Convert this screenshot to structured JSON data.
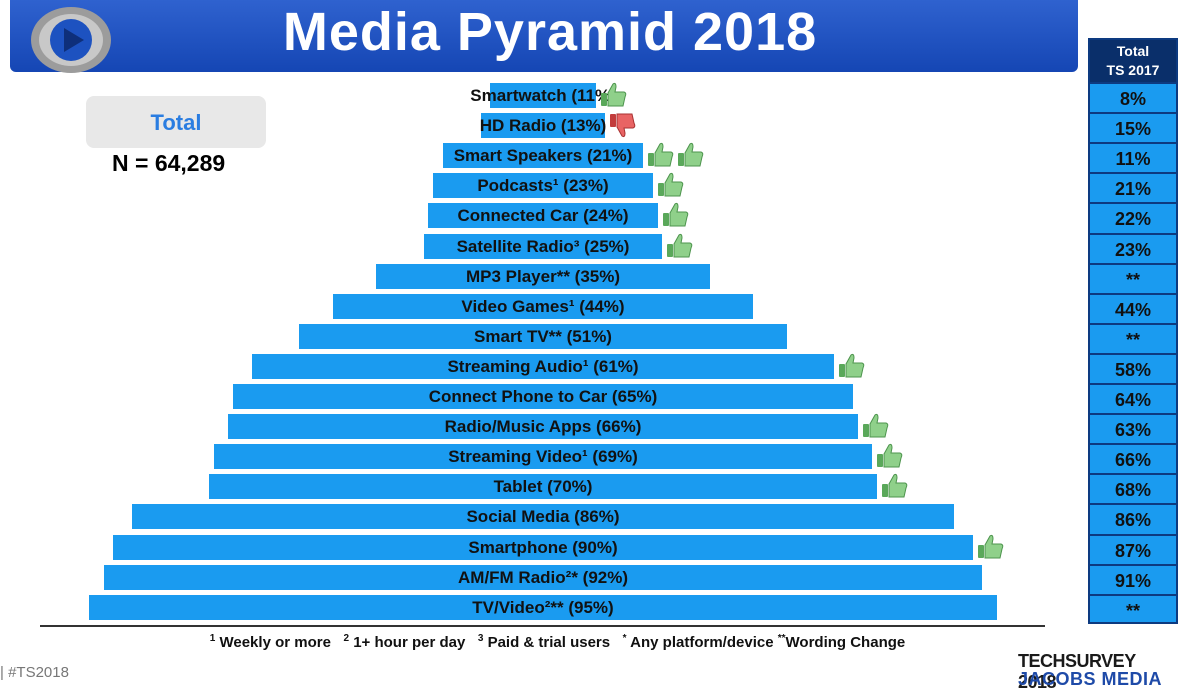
{
  "header": {
    "title": "Media Pyramid 2018"
  },
  "summary": {
    "box_label": "Total",
    "n_label": "N = 64,289"
  },
  "comparison": {
    "header_line1": "Total",
    "header_line2": "TS 2017",
    "values": [
      "8%",
      "15%",
      "11%",
      "21%",
      "22%",
      "23%",
      "**",
      "44%",
      "**",
      "58%",
      "64%",
      "63%",
      "66%",
      "68%",
      "86%",
      "87%",
      "91%",
      "**"
    ]
  },
  "footnote": {
    "sup1": "1",
    "text1": "Weekly or more",
    "sup2": "2",
    "text2": "1+ hour per day",
    "sup3": "3",
    "text3": "Paid & trial users",
    "sup4": "*",
    "text4": "Any platform/device",
    "sup5": "**",
    "text5": "Wording Change"
  },
  "bottom": {
    "hashtag": "|   #TS2018",
    "brand_line1": "TECHSURVEY 2018",
    "brand_line2": "JACOBS MEDIA"
  },
  "colors": {
    "bar": "#1a9bf0",
    "header": "#1546b4",
    "thumb_up": "#7ec87a",
    "thumb_down": "#e0504c"
  },
  "chart_data": {
    "type": "bar",
    "title": "Media Pyramid 2018",
    "xlabel": "",
    "ylabel": "",
    "categories": [
      "Smartwatch",
      "HD Radio",
      "Smart Speakers",
      "Podcasts",
      "Connected Car",
      "Satellite Radio",
      "MP3 Player",
      "Video Games",
      "Smart TV",
      "Streaming Audio",
      "Connect Phone to Car",
      "Radio/Music Apps",
      "Streaming Video",
      "Tablet",
      "Social Media",
      "Smartphone",
      "AM/FM Radio",
      "TV/Video"
    ],
    "labels": [
      "Smartwatch (11%)",
      "HD Radio (13%)",
      "Smart Speakers (21%)",
      "Podcasts¹ (23%)",
      "Connected Car (24%)",
      "Satellite Radio³ (25%)",
      "MP3 Player** (35%)",
      "Video Games¹ (44%)",
      "Smart TV** (51%)",
      "Streaming Audio¹ (61%)",
      "Connect Phone to Car (65%)",
      "Radio/Music Apps (66%)",
      "Streaming Video¹ (69%)",
      "Tablet (70%)",
      "Social Media (86%)",
      "Smartphone (90%)",
      "AM/FM Radio²* (92%)",
      "TV/Video²** (95%)"
    ],
    "values": [
      11,
      13,
      21,
      23,
      24,
      25,
      35,
      44,
      51,
      61,
      65,
      66,
      69,
      70,
      86,
      90,
      92,
      95
    ],
    "xlim": [
      0,
      100
    ],
    "trend": [
      "up",
      "down",
      "up2",
      "up",
      "up",
      "up",
      "",
      "",
      "",
      "up",
      "",
      "up",
      "up",
      "up",
      "",
      "up",
      "",
      ""
    ],
    "series": [
      {
        "name": "2018",
        "values": [
          11,
          13,
          21,
          23,
          24,
          25,
          35,
          44,
          51,
          61,
          65,
          66,
          69,
          70,
          86,
          90,
          92,
          95
        ]
      },
      {
        "name": "Total TS 2017",
        "values": [
          8,
          15,
          11,
          21,
          22,
          23,
          null,
          44,
          null,
          58,
          64,
          63,
          66,
          68,
          86,
          87,
          91,
          null
        ]
      }
    ]
  }
}
